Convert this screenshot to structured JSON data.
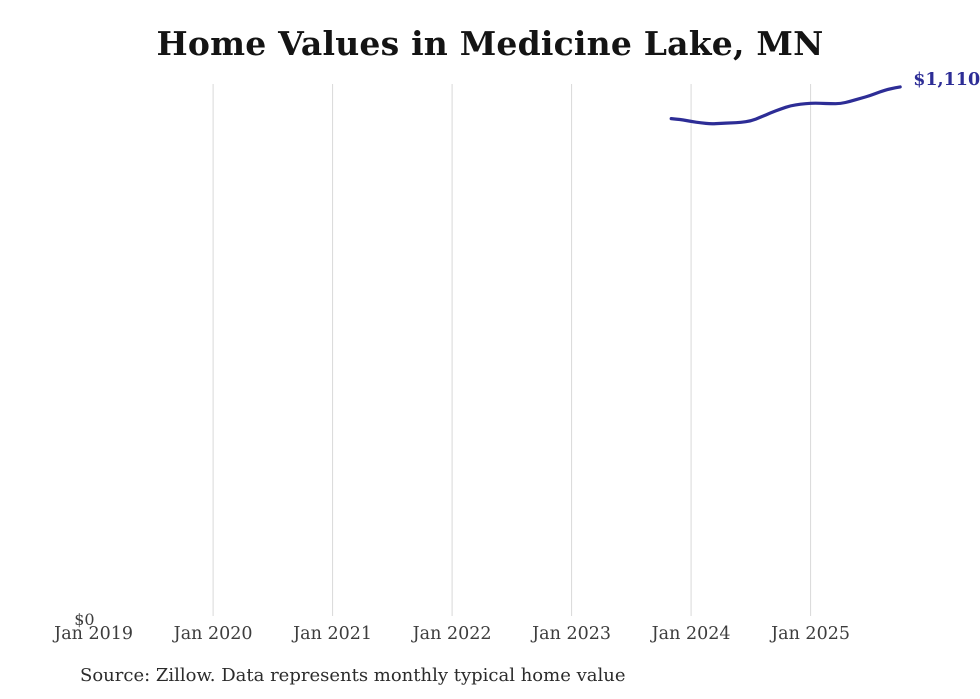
{
  "title": "Home Values in Medicine Lake, MN",
  "source_note": "Source: Zillow. Data represents monthly typical home value",
  "colors": {
    "accent": "#2d2d96",
    "gridline": "#d9d9d9",
    "title": "#141414",
    "axis_label": "#3d3d3d",
    "source": "#2b2b2b",
    "background": "#ffffff"
  },
  "chart_data": {
    "type": "line",
    "title": "Home Values in Medicine Lake, MN",
    "xlabel": "",
    "ylabel": "",
    "grid": "vertical-only",
    "legend": "none",
    "y_axis": {
      "zero_label": "$0",
      "ylim": [
        0,
        1116000
      ]
    },
    "x_ticks": [
      {
        "label": "Jan 2019",
        "month": "2019-01",
        "gridline": false
      },
      {
        "label": "Jan 2020",
        "month": "2020-01",
        "gridline": true
      },
      {
        "label": "Jan 2021",
        "month": "2021-01",
        "gridline": true
      },
      {
        "label": "Jan 2022",
        "month": "2022-01",
        "gridline": true
      },
      {
        "label": "Jan 2023",
        "month": "2023-01",
        "gridline": true
      },
      {
        "label": "Jan 2024",
        "month": "2024-01",
        "gridline": true
      },
      {
        "label": "Jan 2025",
        "month": "2025-01",
        "gridline": true
      }
    ],
    "end_label": "$1,110,",
    "series": [
      {
        "name": "Monthly typical home value",
        "color": "#2d2d96",
        "x": [
          "2023-11",
          "2023-12",
          "2024-01",
          "2024-02",
          "2024-03",
          "2024-04",
          "2024-05",
          "2024-06",
          "2024-07",
          "2024-08",
          "2024-09",
          "2024-10",
          "2024-11",
          "2024-12",
          "2025-01",
          "2025-02",
          "2025-03",
          "2025-04",
          "2025-05",
          "2025-06",
          "2025-07",
          "2025-08",
          "2025-09",
          "2025-10"
        ],
        "values": [
          1044000,
          1042000,
          1038000,
          1035000,
          1033000,
          1034000,
          1035000,
          1036000,
          1039000,
          1047000,
          1056000,
          1064000,
          1071000,
          1074000,
          1076000,
          1076000,
          1075000,
          1075000,
          1080000,
          1086000,
          1092000,
          1100000,
          1106000,
          1110000
        ]
      }
    ]
  }
}
